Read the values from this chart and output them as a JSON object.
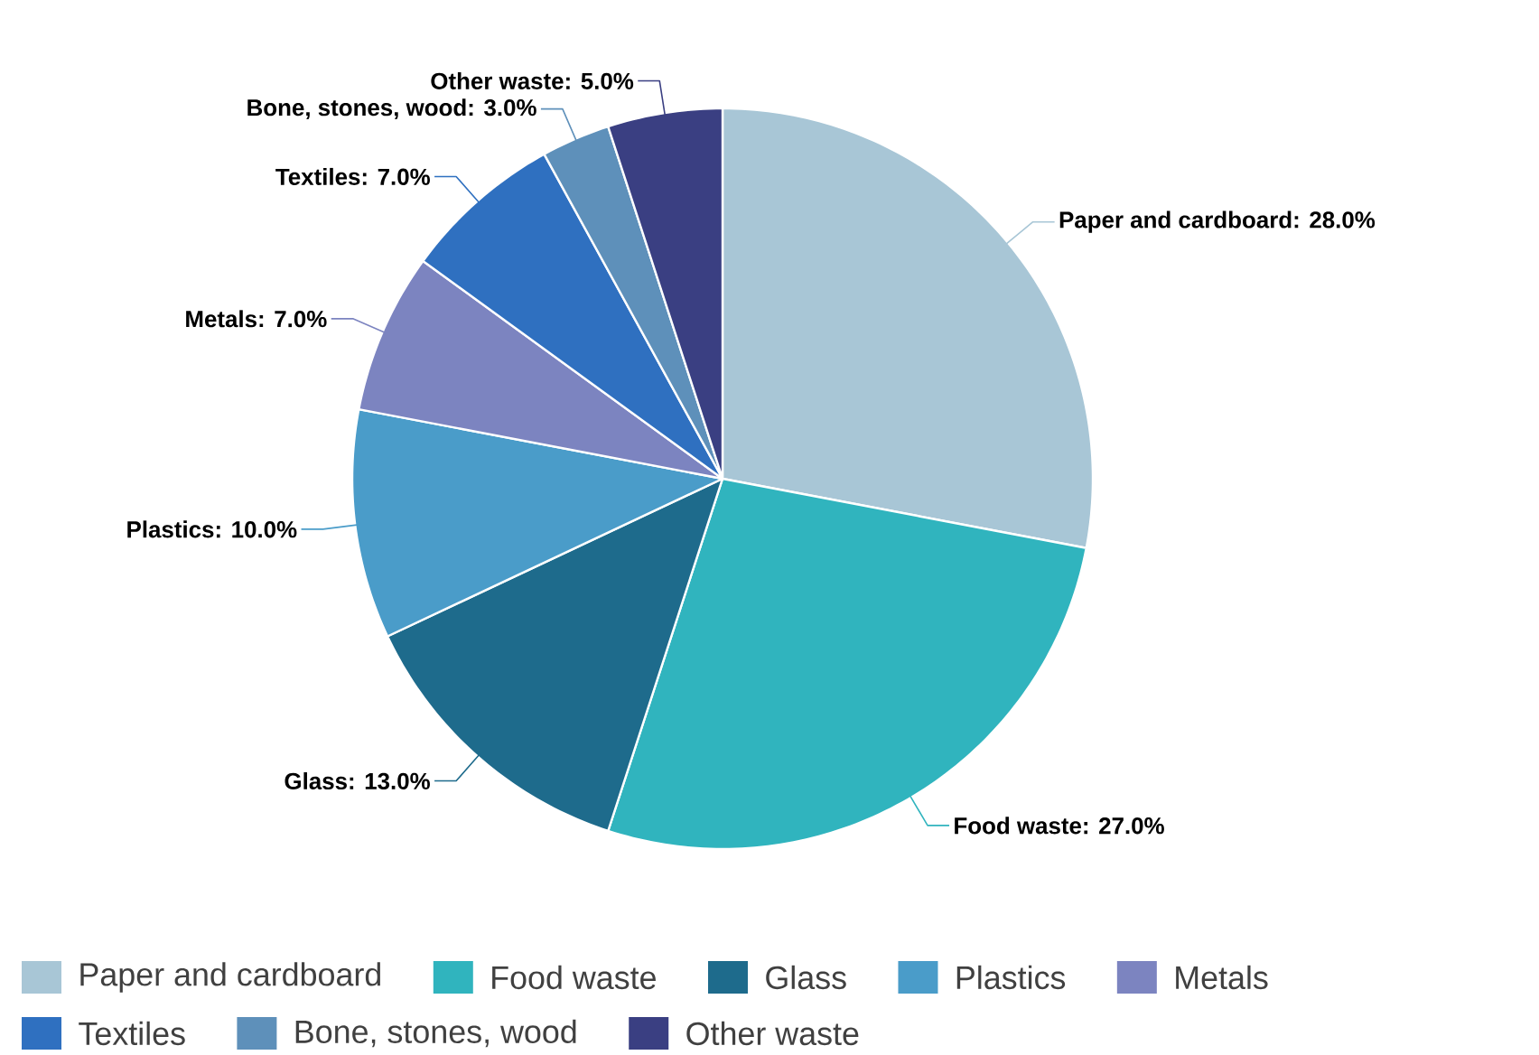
{
  "chart_data": {
    "type": "pie",
    "categories": [
      "Paper and cardboard",
      "Food waste",
      "Glass",
      "Plastics",
      "Metals",
      "Textiles",
      "Bone, stones, wood",
      "Other waste"
    ],
    "values": [
      28,
      27,
      13,
      10,
      7,
      7,
      3,
      5
    ],
    "value_labels": [
      "Paper and cardboard: 28.0%",
      "Food waste: 27.0%",
      "Glass: 13.0%",
      "Plastics: 10.0%",
      "Metals: 7.0%",
      "Textiles: 7.0%",
      "Bone, stones, wood: 3.0%",
      "Other waste: 5.0%"
    ],
    "colors": [
      "#a8c6d6",
      "#30b4be",
      "#1e6b8c",
      "#4a9cc9",
      "#7c84c0",
      "#2f70c0",
      "#5e90ba",
      "#3a3f82"
    ],
    "legend": "bottom"
  }
}
